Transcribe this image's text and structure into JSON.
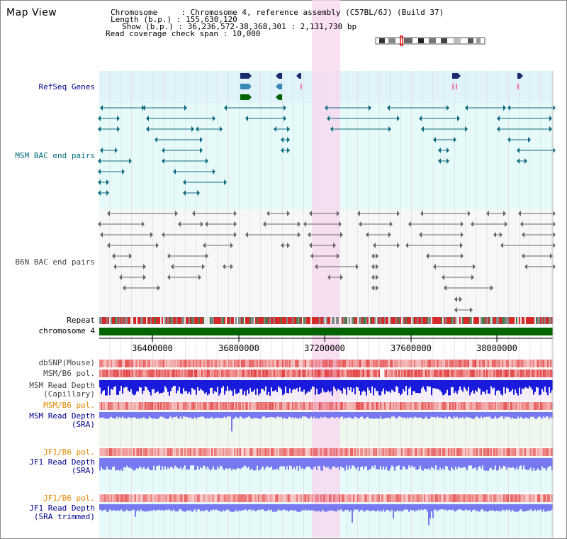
{
  "title": "Map View",
  "info": {
    "line1": "Chromosome     : Chromosome 4, reference assembly (C57BL/6J) (Build 37)",
    "line2": "Length (b.p.) : 155,630,120",
    "line3": "Show (b.p.) : 36,236,572-38,368,301 : 2,131,730 bp",
    "line4": "Read coverage check span : 10,000"
  },
  "tracks": {
    "refseq": "RefSeq Genes",
    "msm_bac": "MSM BAC end pairs",
    "b6n_bac": "B6N BAC end pairs",
    "repeat": "Repeat",
    "chromosome": "chromosome 4",
    "dbsnp": "dbSNP(Mouse)",
    "msm_b6_pol_1": "MSM/B6 pol.",
    "msm_depth_cap": "MSM Read Depth\n(Capillary)",
    "msm_b6_pol_2": "MSM/B6 pol.",
    "msm_depth_sra": "MSM Read Depth\n(SRA)",
    "jf1_b6_pol_1": "JF1/B6 pol.",
    "jf1_depth_sra": "JF1 Read Depth\n(SRA)",
    "jf1_b6_pol_2": "JF1/B6 pol.",
    "jf1_depth_trim": "JF1 Read Depth\n(SRA trimmed)"
  },
  "ruler": {
    "ticks": [
      "36400000",
      "36800000",
      "37200000",
      "37600000",
      "38000000"
    ]
  },
  "colors": {
    "refseq_bg": "#e0f3fb",
    "bac_bg": "#e6fafa",
    "b6n_bg": "#f5f7f8",
    "highlight": "#f8d8f0",
    "chromosome": "#006400",
    "depth_blue": "#1a1adc",
    "depth_light": "#7878f0",
    "pol_red": "#e05050"
  }
}
